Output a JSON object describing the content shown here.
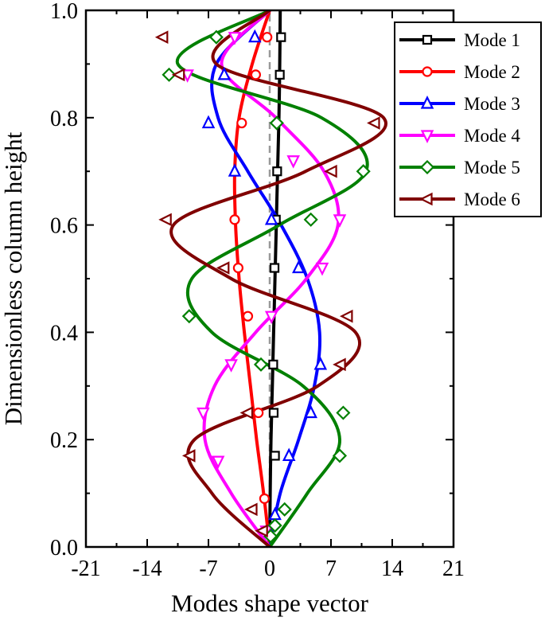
{
  "chart_data": {
    "type": "line",
    "title": "",
    "xlabel": "Modes shape vector",
    "ylabel": "Dimensionless column height",
    "xlim": [
      -21,
      21
    ],
    "ylim": [
      0,
      1
    ],
    "xticks": [
      "-21",
      "-14",
      "-7",
      "0",
      "7",
      "14",
      "21"
    ],
    "yticks": [
      "0.0",
      "0.2",
      "0.4",
      "0.6",
      "0.8",
      "1.0"
    ],
    "grid": false,
    "legend_position": "top-right",
    "reference_line": {
      "x": 0,
      "style": "dashed",
      "color": "#999999"
    },
    "series": [
      {
        "name": "Mode 1",
        "color": "#000000",
        "marker": "square",
        "points": [
          [
            0,
            0
          ],
          [
            0.05,
            0.1
          ],
          [
            0.15,
            0.2
          ],
          [
            0.3,
            0.3
          ],
          [
            0.45,
            0.4
          ],
          [
            0.6,
            0.5
          ],
          [
            0.75,
            0.6
          ],
          [
            0.9,
            0.7
          ],
          [
            1.05,
            0.8
          ],
          [
            1.15,
            0.9
          ],
          [
            1.2,
            1.0
          ]
        ],
        "markers": [
          [
            0.6,
            0.17
          ],
          [
            0.45,
            0.25
          ],
          [
            0.4,
            0.34
          ],
          [
            0.55,
            0.52
          ],
          [
            0.7,
            0.61
          ],
          [
            0.85,
            0.7
          ],
          [
            1.15,
            0.88
          ],
          [
            1.3,
            0.95
          ]
        ]
      },
      {
        "name": "Mode 2",
        "color": "#ff0000",
        "marker": "circle",
        "points": [
          [
            0,
            0
          ],
          [
            -0.7,
            0.1
          ],
          [
            -1.5,
            0.2
          ],
          [
            -2.2,
            0.3
          ],
          [
            -2.9,
            0.4
          ],
          [
            -3.5,
            0.5
          ],
          [
            -3.9,
            0.6
          ],
          [
            -4.0,
            0.7
          ],
          [
            -3.5,
            0.8
          ],
          [
            -2.0,
            0.9
          ],
          [
            0,
            1.0
          ]
        ],
        "markers": [
          [
            -0.6,
            0.09
          ],
          [
            -1.3,
            0.25
          ],
          [
            -2.5,
            0.43
          ],
          [
            -3.6,
            0.52
          ],
          [
            -4.0,
            0.61
          ],
          [
            -3.2,
            0.79
          ],
          [
            -1.6,
            0.88
          ],
          [
            -0.3,
            0.95
          ]
        ]
      },
      {
        "name": "Mode 3",
        "color": "#0000ff",
        "marker": "triangle-up",
        "points": [
          [
            0,
            0
          ],
          [
            1.2,
            0.1
          ],
          [
            3.3,
            0.2
          ],
          [
            5.1,
            0.3
          ],
          [
            5.7,
            0.4
          ],
          [
            4.3,
            0.5
          ],
          [
            1.3,
            0.6
          ],
          [
            -2.5,
            0.7
          ],
          [
            -5.9,
            0.8
          ],
          [
            -6.1,
            0.9
          ],
          [
            0,
            1.0
          ]
        ],
        "markers": [
          [
            0.6,
            0.06
          ],
          [
            2.2,
            0.17
          ],
          [
            4.7,
            0.25
          ],
          [
            5.8,
            0.34
          ],
          [
            3.3,
            0.52
          ],
          [
            0.2,
            0.61
          ],
          [
            -4.0,
            0.7
          ],
          [
            -7.0,
            0.79
          ],
          [
            -5.2,
            0.88
          ],
          [
            -1.7,
            0.95
          ]
        ]
      },
      {
        "name": "Mode 4",
        "color": "#ff00ff",
        "marker": "triangle-down",
        "points": [
          [
            0,
            0
          ],
          [
            -4.4,
            0.1
          ],
          [
            -7.4,
            0.2
          ],
          [
            -6.3,
            0.3
          ],
          [
            -1.6,
            0.4
          ],
          [
            4.2,
            0.5
          ],
          [
            7.8,
            0.6
          ],
          [
            6.2,
            0.7
          ],
          [
            0.7,
            0.8
          ],
          [
            -5.5,
            0.9
          ],
          [
            0,
            1.0
          ]
        ],
        "markers": [
          [
            -0.4,
            0.03
          ],
          [
            -5.9,
            0.16
          ],
          [
            -7.6,
            0.25
          ],
          [
            -4.4,
            0.34
          ],
          [
            0.2,
            0.43
          ],
          [
            6.0,
            0.52
          ],
          [
            8.0,
            0.61
          ],
          [
            2.7,
            0.72
          ],
          [
            -9.4,
            0.88
          ],
          [
            -4.0,
            0.95
          ]
        ]
      },
      {
        "name": "Mode 5",
        "color": "#008000",
        "marker": "diamond",
        "points": [
          [
            0,
            0
          ],
          [
            4.3,
            0.1
          ],
          [
            8.0,
            0.2
          ],
          [
            3.8,
            0.3
          ],
          [
            -6.6,
            0.4
          ],
          [
            -8.9,
            0.5
          ],
          [
            1.1,
            0.6
          ],
          [
            11.0,
            0.7
          ],
          [
            5.9,
            0.8
          ],
          [
            -10.5,
            0.9
          ],
          [
            0,
            1.0
          ]
        ],
        "markers": [
          [
            0.1,
            0.02
          ],
          [
            0.6,
            0.04
          ],
          [
            1.7,
            0.07
          ],
          [
            8.0,
            0.17
          ],
          [
            8.4,
            0.25
          ],
          [
            -1.0,
            0.34
          ],
          [
            -9.2,
            0.43
          ],
          [
            4.7,
            0.61
          ],
          [
            10.7,
            0.7
          ],
          [
            0.8,
            0.79
          ],
          [
            -11.5,
            0.88
          ],
          [
            -6.1,
            0.95
          ]
        ]
      },
      {
        "name": "Mode 6",
        "color": "#800000",
        "marker": "triangle-left",
        "points": [
          [
            0,
            0
          ],
          [
            -6.6,
            0.1
          ],
          [
            -8.6,
            0.2
          ],
          [
            5.5,
            0.3
          ],
          [
            9.8,
            0.4
          ],
          [
            -4.4,
            0.5
          ],
          [
            -11.0,
            0.6
          ],
          [
            4.1,
            0.7
          ],
          [
            13.0,
            0.8
          ],
          [
            -6.1,
            0.9
          ],
          [
            0,
            1.0
          ]
        ],
        "markers": [
          [
            -0.8,
            0.03
          ],
          [
            -2.0,
            0.07
          ],
          [
            -9.1,
            0.17
          ],
          [
            -2.5,
            0.25
          ],
          [
            8.1,
            0.34
          ],
          [
            8.9,
            0.43
          ],
          [
            -5.2,
            0.52
          ],
          [
            -11.8,
            0.61
          ],
          [
            7.1,
            0.7
          ],
          [
            12.0,
            0.79
          ],
          [
            -10.3,
            0.88
          ],
          [
            -12.2,
            0.95
          ]
        ]
      }
    ]
  }
}
